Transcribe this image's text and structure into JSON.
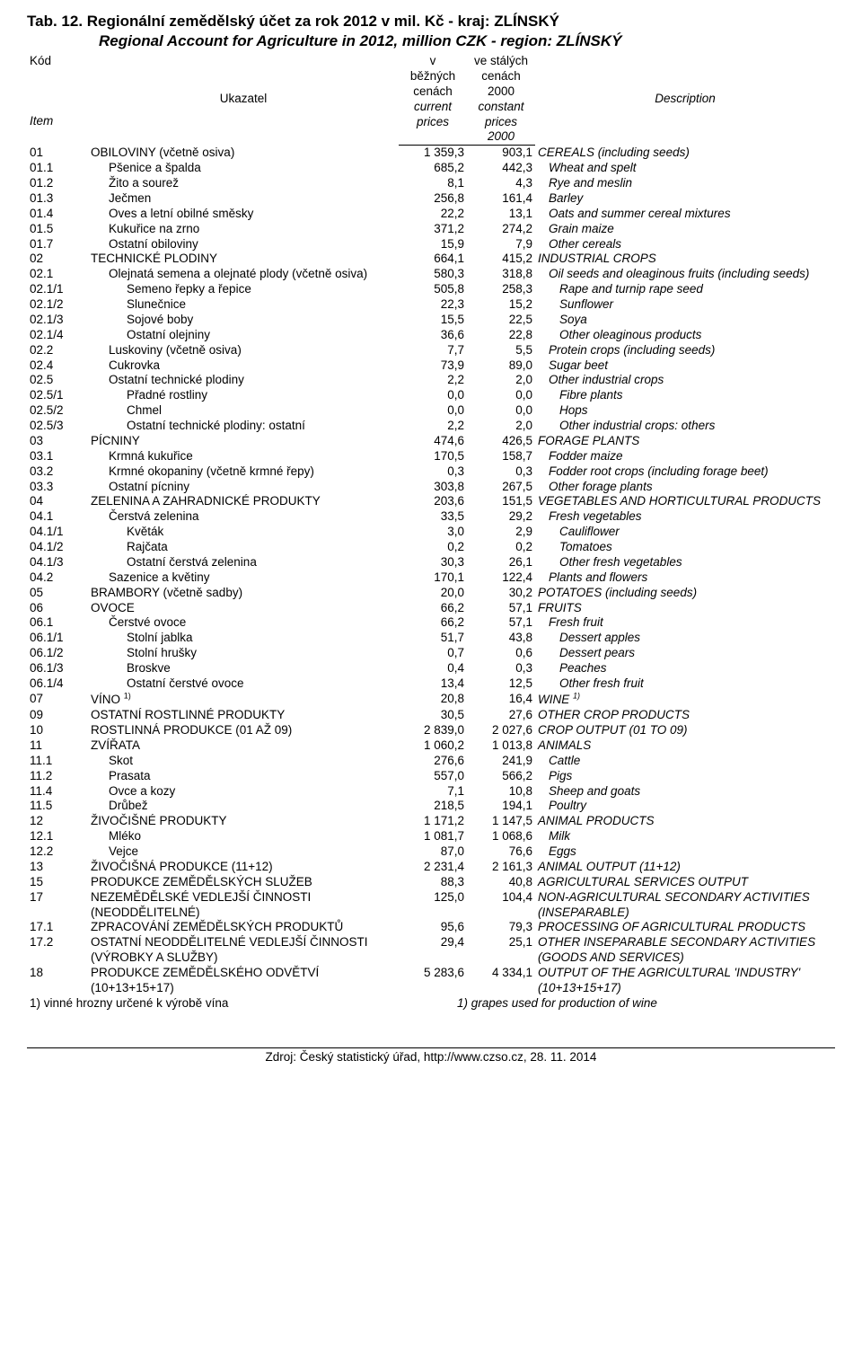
{
  "titles": {
    "cz": "Tab. 12. Regionální zemědělský účet za rok 2012 v mil. Kč - kraj: ZLÍNSKÝ",
    "en": "Regional Account for Agriculture  in 2012, million CZK - region:  ZLÍNSKÝ"
  },
  "headers": {
    "kod": "Kód",
    "item": "Item",
    "ukazatel": "Ukazatel",
    "col1_l1": "v",
    "col1_l2": "běžných",
    "col1_l3": "cenách",
    "col1_l4": "current",
    "col1_l5": "prices",
    "col2_l1": "ve stálých",
    "col2_l2": "cenách",
    "col2_l3": "2000",
    "col2_l4": "constant",
    "col2_l5": "prices",
    "col2_l6": "2000",
    "description": "Description"
  },
  "rows": [
    {
      "code": "01",
      "uk": "OBILOVINY (včetně osiva)",
      "v1": "1 359,3",
      "v2": "903,1",
      "desc": "CEREALS (including seeds)",
      "ui": 0,
      "di": 0
    },
    {
      "code": "01.1",
      "uk": "Pšenice a špalda",
      "v1": "685,2",
      "v2": "442,3",
      "desc": "Wheat and spelt",
      "ui": 1,
      "di": 1
    },
    {
      "code": "01.2",
      "uk": "Žito a sourež",
      "v1": "8,1",
      "v2": "4,3",
      "desc": "Rye and meslin",
      "ui": 1,
      "di": 1
    },
    {
      "code": "01.3",
      "uk": "Ječmen",
      "v1": "256,8",
      "v2": "161,4",
      "desc": "Barley",
      "ui": 1,
      "di": 1
    },
    {
      "code": "01.4",
      "uk": "Oves a letní obilné směsky",
      "v1": "22,2",
      "v2": "13,1",
      "desc": "Oats and summer cereal mixtures",
      "ui": 1,
      "di": 1
    },
    {
      "code": "01.5",
      "uk": "Kukuřice na zrno",
      "v1": "371,2",
      "v2": "274,2",
      "desc": "Grain maize",
      "ui": 1,
      "di": 1
    },
    {
      "code": "01.7",
      "uk": "Ostatní obiloviny",
      "v1": "15,9",
      "v2": "7,9",
      "desc": "Other cereals",
      "ui": 1,
      "di": 1
    },
    {
      "code": "02",
      "uk": "TECHNICKÉ PLODINY",
      "v1": "664,1",
      "v2": "415,2",
      "desc": "INDUSTRIAL CROPS",
      "ui": 0,
      "di": 0
    },
    {
      "code": "02.1",
      "uk": "Olejnatá semena a olejnaté plody (včetně osiva)",
      "v1": "580,3",
      "v2": "318,8",
      "desc": "Oil seeds and oleaginous fruits (including seeds)",
      "ui": 1,
      "di": 1
    },
    {
      "code": "02.1/1",
      "uk": "Semeno řepky a řepice",
      "v1": "505,8",
      "v2": "258,3",
      "desc": "Rape and turnip rape seed",
      "ui": 2,
      "di": 2
    },
    {
      "code": "02.1/2",
      "uk": "Slunečnice",
      "v1": "22,3",
      "v2": "15,2",
      "desc": "Sunflower",
      "ui": 2,
      "di": 2
    },
    {
      "code": "02.1/3",
      "uk": "Sojové boby",
      "v1": "15,5",
      "v2": "22,5",
      "desc": "Soya",
      "ui": 2,
      "di": 2
    },
    {
      "code": "02.1/4",
      "uk": "Ostatní olejniny",
      "v1": "36,6",
      "v2": "22,8",
      "desc": "Other oleaginous products",
      "ui": 2,
      "di": 2
    },
    {
      "code": "02.2",
      "uk": "Luskoviny (včetně osiva)",
      "v1": "7,7",
      "v2": "5,5",
      "desc": "Protein crops (including seeds)",
      "ui": 1,
      "di": 1
    },
    {
      "code": "02.4",
      "uk": "Cukrovka",
      "v1": "73,9",
      "v2": "89,0",
      "desc": "Sugar beet",
      "ui": 1,
      "di": 1
    },
    {
      "code": "02.5",
      "uk": "Ostatní technické plodiny",
      "v1": "2,2",
      "v2": "2,0",
      "desc": "Other industrial crops",
      "ui": 1,
      "di": 1
    },
    {
      "code": "02.5/1",
      "uk": "Přadné rostliny",
      "v1": "0,0",
      "v2": "0,0",
      "desc": "Fibre plants",
      "ui": 2,
      "di": 2
    },
    {
      "code": "02.5/2",
      "uk": "Chmel",
      "v1": "0,0",
      "v2": "0,0",
      "desc": "Hops",
      "ui": 2,
      "di": 2
    },
    {
      "code": "02.5/3",
      "uk": "Ostatní technické plodiny: ostatní",
      "v1": "2,2",
      "v2": "2,0",
      "desc": "Other industrial crops: others",
      "ui": 2,
      "di": 2
    },
    {
      "code": "03",
      "uk": "PÍCNINY",
      "v1": "474,6",
      "v2": "426,5",
      "desc": "FORAGE PLANTS",
      "ui": 0,
      "di": 0
    },
    {
      "code": "03.1",
      "uk": "Krmná kukuřice",
      "v1": "170,5",
      "v2": "158,7",
      "desc": "Fodder maize",
      "ui": 1,
      "di": 1
    },
    {
      "code": "03.2",
      "uk": "Krmné okopaniny (včetně krmné řepy)",
      "v1": "0,3",
      "v2": "0,3",
      "desc": "Fodder root crops (including forage beet)",
      "ui": 1,
      "di": 1
    },
    {
      "code": "03.3",
      "uk": "Ostatní pícniny",
      "v1": "303,8",
      "v2": "267,5",
      "desc": "Other forage plants",
      "ui": 1,
      "di": 1
    },
    {
      "code": "04",
      "uk": "ZELENINA A ZAHRADNICKÉ PRODUKTY",
      "v1": "203,6",
      "v2": "151,5",
      "desc": "VEGETABLES AND HORTICULTURAL PRODUCTS",
      "ui": 0,
      "di": 0
    },
    {
      "code": "04.1",
      "uk": "Čerstvá zelenina",
      "v1": "33,5",
      "v2": "29,2",
      "desc": "Fresh vegetables",
      "ui": 1,
      "di": 1
    },
    {
      "code": "04.1/1",
      "uk": "Květák",
      "v1": "3,0",
      "v2": "2,9",
      "desc": "Cauliflower",
      "ui": 2,
      "di": 2
    },
    {
      "code": "04.1/2",
      "uk": "Rajčata",
      "v1": "0,2",
      "v2": "0,2",
      "desc": "Tomatoes",
      "ui": 2,
      "di": 2
    },
    {
      "code": "04.1/3",
      "uk": "Ostatní čerstvá zelenina",
      "v1": "30,3",
      "v2": "26,1",
      "desc": "Other fresh vegetables",
      "ui": 2,
      "di": 2
    },
    {
      "code": "04.2",
      "uk": "Sazenice a květiny",
      "v1": "170,1",
      "v2": "122,4",
      "desc": "Plants and flowers",
      "ui": 1,
      "di": 1
    },
    {
      "code": "05",
      "uk": "BRAMBORY (včetně sadby)",
      "v1": "20,0",
      "v2": "30,2",
      "desc": "POTATOES (including seeds)",
      "ui": 0,
      "di": 0
    },
    {
      "code": "06",
      "uk": "OVOCE",
      "v1": "66,2",
      "v2": "57,1",
      "desc": "FRUITS",
      "ui": 0,
      "di": 0
    },
    {
      "code": "06.1",
      "uk": "Čerstvé ovoce",
      "v1": "66,2",
      "v2": "57,1",
      "desc": "Fresh fruit",
      "ui": 1,
      "di": 1
    },
    {
      "code": "06.1/1",
      "uk": "Stolní jablka",
      "v1": "51,7",
      "v2": "43,8",
      "desc": "Dessert apples",
      "ui": 2,
      "di": 2
    },
    {
      "code": "06.1/2",
      "uk": "Stolní hrušky",
      "v1": "0,7",
      "v2": "0,6",
      "desc": "Dessert pears",
      "ui": 2,
      "di": 2
    },
    {
      "code": "06.1/3",
      "uk": "Broskve",
      "v1": "0,4",
      "v2": "0,3",
      "desc": "Peaches",
      "ui": 2,
      "di": 2
    },
    {
      "code": "06.1/4",
      "uk": "Ostatní čerstvé ovoce",
      "v1": "13,4",
      "v2": "12,5",
      "desc": "Other fresh fruit",
      "ui": 2,
      "di": 2
    },
    {
      "code": "07",
      "uk": "VÍNO <sup>1)</sup>",
      "v1": "20,8",
      "v2": "16,4",
      "desc": "WINE <sup>1)</sup>",
      "ui": 0,
      "di": 0,
      "html": true
    },
    {
      "code": "09",
      "uk": "OSTATNÍ ROSTLINNÉ PRODUKTY",
      "v1": "30,5",
      "v2": "27,6",
      "desc": "OTHER CROP PRODUCTS",
      "ui": 0,
      "di": 0
    },
    {
      "code": "10",
      "uk": "ROSTLINNÁ PRODUKCE (01 AŽ 09)",
      "v1": "2 839,0",
      "v2": "2 027,6",
      "desc": "CROP OUTPUT (01 TO 09)",
      "ui": 0,
      "di": 0
    },
    {
      "code": "11",
      "uk": "ZVÍŘATA",
      "v1": "1 060,2",
      "v2": "1 013,8",
      "desc": "ANIMALS",
      "ui": 0,
      "di": 0
    },
    {
      "code": "11.1",
      "uk": "Skot",
      "v1": "276,6",
      "v2": "241,9",
      "desc": "Cattle",
      "ui": 1,
      "di": 1
    },
    {
      "code": "11.2",
      "uk": "Prasata",
      "v1": "557,0",
      "v2": "566,2",
      "desc": "Pigs",
      "ui": 1,
      "di": 1
    },
    {
      "code": "11.4",
      "uk": "Ovce a kozy",
      "v1": "7,1",
      "v2": "10,8",
      "desc": "Sheep and goats",
      "ui": 1,
      "di": 1
    },
    {
      "code": "11.5",
      "uk": "Drůbež",
      "v1": "218,5",
      "v2": "194,1",
      "desc": "Poultry",
      "ui": 1,
      "di": 1
    },
    {
      "code": "12",
      "uk": "ŽIVOČIŠNÉ PRODUKTY",
      "v1": "1 171,2",
      "v2": "1 147,5",
      "desc": "ANIMAL PRODUCTS",
      "ui": 0,
      "di": 0
    },
    {
      "code": "12.1",
      "uk": "Mléko",
      "v1": "1 081,7",
      "v2": "1 068,6",
      "desc": "Milk",
      "ui": 1,
      "di": 1
    },
    {
      "code": "12.2",
      "uk": "Vejce",
      "v1": "87,0",
      "v2": "76,6",
      "desc": "Eggs",
      "ui": 1,
      "di": 1
    },
    {
      "code": "13",
      "uk": "ŽIVOČIŠNÁ PRODUKCE (11+12)",
      "v1": "2 231,4",
      "v2": "2 161,3",
      "desc": "ANIMAL OUTPUT (11+12)",
      "ui": 0,
      "di": 0
    },
    {
      "code": "15",
      "uk": "PRODUKCE ZEMĚDĚLSKÝCH SLUŽEB",
      "v1": "88,3",
      "v2": "40,8",
      "desc": "AGRICULTURAL SERVICES OUTPUT",
      "ui": 0,
      "di": 0
    },
    {
      "code": "17",
      "uk": "NEZEMĚDĚLSKÉ VEDLEJŠÍ ČINNOSTI (NEODDĚLITELNÉ)",
      "v1": "125,0",
      "v2": "104,4",
      "desc": "NON-AGRICULTURAL SECONDARY ACTIVITIES (INSEPARABLE)",
      "ui": 0,
      "di": 0
    },
    {
      "code": "17.1",
      "uk": "ZPRACOVÁNÍ ZEMĚDĚLSKÝCH PRODUKTŮ",
      "v1": "95,6",
      "v2": "79,3",
      "desc": "PROCESSING OF AGRICULTURAL PRODUCTS",
      "ui": 0,
      "di": 0
    },
    {
      "code": "17.2",
      "uk": "OSTATNÍ NEODDĚLITELNÉ VEDLEJŠÍ ČINNOSTI (VÝROBKY A SLUŽBY)",
      "v1": "29,4",
      "v2": "25,1",
      "desc": "OTHER INSEPARABLE SECONDARY ACTIVITIES (GOODS AND SERVICES)",
      "ui": 0,
      "di": 0
    },
    {
      "code": "18",
      "uk": "PRODUKCE ZEMĚDĚLSKÉHO ODVĚTVÍ (10+13+15+17)",
      "v1": "5 283,6",
      "v2": "4 334,1",
      "desc": "OUTPUT OF THE AGRICULTURAL 'INDUSTRY' (10+13+15+17)",
      "ui": 0,
      "di": 0
    }
  ],
  "footnote": {
    "cz": "1) vinné hrozny určené k výrobě vína",
    "en": "1) grapes used for production of wine"
  },
  "source": "Zdroj: Český statistický úřad, http://www.czso.cz, 28. 11. 2014"
}
